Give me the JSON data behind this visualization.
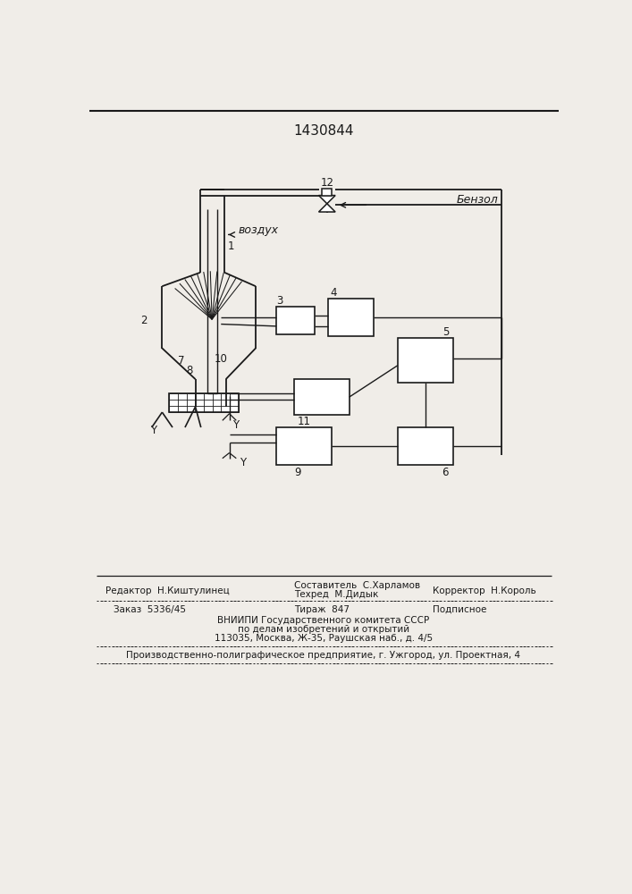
{
  "title": "1430844",
  "bg_color": "#f0ede8",
  "line_color": "#1a1a1a",
  "text_color": "#1a1a1a",
  "label_vozdukh": "воздух",
  "label_benzol": "Бензол",
  "num_12": "12",
  "num_1": "1",
  "num_2": "2",
  "num_3": "3",
  "num_4": "4",
  "num_5": "5",
  "num_6": "6",
  "num_7": "7",
  "num_8": "8",
  "num_9": "9",
  "num_10": "10",
  "num_11": "11",
  "footer_editor": "Редактор  Н.Киштулинец",
  "footer_sostavitel": "Составитель  С.Харламов",
  "footer_tehred": "Техред  М.Дидык",
  "footer_korrektor": "Корректор  Н.Король",
  "footer_zakaz": "Заказ  5336/45",
  "footer_tirazh": "Тираж  847",
  "footer_podpisnoe": "Подписное",
  "footer_vnipi1": "ВНИИПИ Государственного комитета СССР",
  "footer_vnipi2": "по делам изобретений и открытий",
  "footer_vnipi3": "113035, Москва, Ж-35, Раушская наб., д. 4/5",
  "footer_last": "Производственно-полиграфическое предприятие, г. Ужгород, ул. Проектная, 4"
}
